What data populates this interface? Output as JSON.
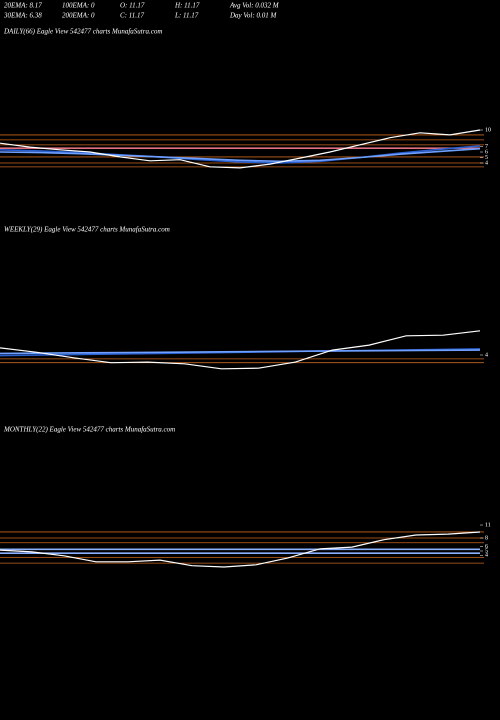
{
  "header": {
    "stats": [
      [
        "20EMA: 8.17",
        "100EMA: 0",
        "O: 11.17",
        "H: 11.17",
        "Avg Vol: 0.032  M"
      ],
      [
        "30EMA: 6.38",
        "200EMA: 0",
        "C: 11.17",
        "L: 11.17",
        "Day Vol: 0.01  M"
      ]
    ]
  },
  "chart_data": [
    {
      "type": "line",
      "title": "DAILY(66) Eagle  View  542477 charts MunafaSutra.com",
      "ylim": [
        2,
        12
      ],
      "yticks": [
        4,
        5,
        6,
        7,
        10
      ],
      "level_color": "#c8651e",
      "levels": [
        9.1,
        8.2,
        7.3,
        5.1,
        4,
        3.3
      ],
      "series": [
        {
          "color": "#e07080",
          "values": [
            6.7,
            6.7
          ]
        },
        {
          "color": "#2a5fd0",
          "values": [
            6.4,
            6.2,
            5.9,
            5.5,
            5.1,
            4.6,
            4.2,
            4.0,
            4.3,
            5.0,
            5.8,
            6.5,
            7.1
          ]
        },
        {
          "color": "#6fa0ff",
          "values": [
            6.0,
            5.9,
            5.7,
            5.4,
            5.1,
            4.8,
            4.5,
            4.3,
            4.5,
            5.0,
            5.6,
            6.1,
            6.6
          ]
        },
        {
          "color": "#ffffff",
          "values": [
            7.6,
            6.9,
            6.4,
            6.0,
            5.1,
            4.4,
            4.6,
            3.3,
            3.1,
            3.8,
            4.9,
            6.0,
            7.3,
            8.6,
            9.5,
            9.1,
            10.0
          ]
        }
      ]
    },
    {
      "type": "line",
      "title": "WEEKLY(29) Eagle  View  542477 charts MunafaSutra.com",
      "ylim": [
        1,
        12
      ],
      "yticks": [
        4
      ],
      "level_color": "#c8651e",
      "levels": [
        3.3,
        2.6
      ],
      "series": [
        {
          "color": "#2a5fd0",
          "values": [
            3.9,
            4.1,
            4.3,
            4.5,
            4.7,
            4.9,
            5.1
          ]
        },
        {
          "color": "#6fa0ff",
          "values": [
            4.3,
            4.4,
            4.5,
            4.6,
            4.7,
            4.8,
            4.9
          ]
        },
        {
          "color": "#ffffff",
          "values": [
            5.3,
            4.5,
            3.5,
            2.6,
            2.7,
            2.4,
            1.5,
            1.6,
            2.7,
            4.9,
            5.8,
            7.5,
            7.6,
            8.4
          ]
        }
      ]
    },
    {
      "type": "line",
      "title": "MONTHLY(22) Eagle  View  542477 charts MunafaSutra.com",
      "ylim": [
        1,
        12
      ],
      "yticks": [
        4,
        5,
        6,
        8,
        11
      ],
      "level_color": "#c8651e",
      "levels": [
        9.4,
        8,
        6.9,
        3.5,
        2.2
      ],
      "series": [
        {
          "color": "#8ab0ff",
          "values": [
            5.4,
            5.4
          ]
        },
        {
          "color": "#8ab0ff",
          "values": [
            4.5,
            4.5
          ]
        },
        {
          "color": "#ffffff",
          "values": [
            5.2,
            4.8,
            3.9,
            2.5,
            2.5,
            2.9,
            1.6,
            1.3,
            1.8,
            3.4,
            5.5,
            5.9,
            7.6,
            8.7,
            8.9,
            9.4
          ]
        }
      ]
    }
  ]
}
